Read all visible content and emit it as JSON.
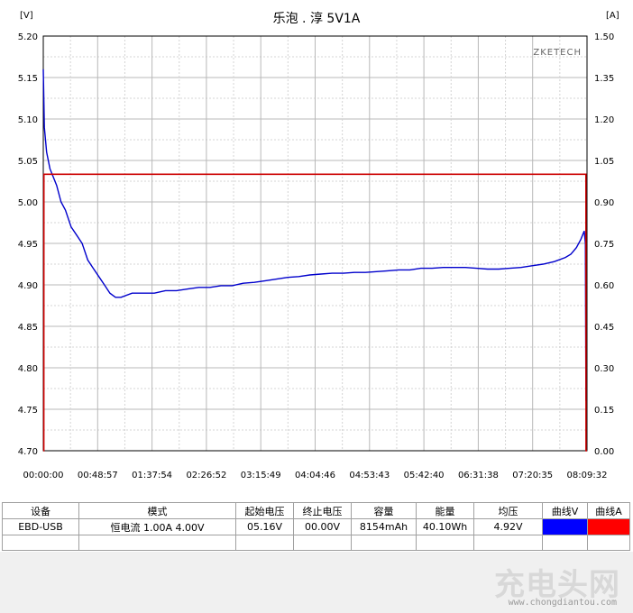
{
  "chart_data": {
    "type": "line",
    "title": "乐泡 . 淳 5V1A",
    "watermark": "ZKETECH",
    "y_left_unit": "[V]",
    "y_right_unit": "[A]",
    "y_left_ticks": [
      "5.20",
      "5.15",
      "5.10",
      "5.05",
      "5.00",
      "4.95",
      "4.90",
      "4.85",
      "4.80",
      "4.75",
      "4.70"
    ],
    "y_right_ticks": [
      "1.50",
      "1.35",
      "1.20",
      "1.05",
      "0.90",
      "0.75",
      "0.60",
      "0.45",
      "0.30",
      "0.15",
      "0.00"
    ],
    "x_ticks": [
      "00:00:00",
      "00:48:57",
      "01:37:54",
      "02:26:52",
      "03:15:49",
      "04:04:46",
      "04:53:43",
      "05:42:40",
      "06:31:38",
      "07:20:35",
      "08:09:32"
    ],
    "y_left_range": [
      4.7,
      5.2
    ],
    "y_right_range": [
      0.0,
      1.5
    ],
    "x_range_minutes": [
      0,
      489.5
    ],
    "grid": true,
    "series": [
      {
        "axis": "left",
        "color": "#0000cc",
        "points": [
          [
            0,
            5.16
          ],
          [
            1,
            5.09
          ],
          [
            3,
            5.06
          ],
          [
            6,
            5.04
          ],
          [
            9,
            5.03
          ],
          [
            12,
            5.02
          ],
          [
            16,
            5.0
          ],
          [
            20,
            4.99
          ],
          [
            25,
            4.97
          ],
          [
            30,
            4.96
          ],
          [
            35,
            4.95
          ],
          [
            40,
            4.93
          ],
          [
            45,
            4.92
          ],
          [
            50,
            4.91
          ],
          [
            55,
            4.9
          ],
          [
            60,
            4.89
          ],
          [
            65,
            4.885
          ],
          [
            70,
            4.885
          ],
          [
            80,
            4.89
          ],
          [
            90,
            4.89
          ],
          [
            100,
            4.89
          ],
          [
            110,
            4.893
          ],
          [
            120,
            4.893
          ],
          [
            130,
            4.895
          ],
          [
            140,
            4.897
          ],
          [
            150,
            4.897
          ],
          [
            160,
            4.899
          ],
          [
            170,
            4.899
          ],
          [
            180,
            4.902
          ],
          [
            190,
            4.903
          ],
          [
            200,
            4.905
          ],
          [
            210,
            4.907
          ],
          [
            220,
            4.909
          ],
          [
            230,
            4.91
          ],
          [
            240,
            4.912
          ],
          [
            250,
            4.913
          ],
          [
            260,
            4.914
          ],
          [
            270,
            4.914
          ],
          [
            280,
            4.915
          ],
          [
            290,
            4.915
          ],
          [
            300,
            4.916
          ],
          [
            310,
            4.917
          ],
          [
            320,
            4.918
          ],
          [
            330,
            4.918
          ],
          [
            340,
            4.92
          ],
          [
            350,
            4.92
          ],
          [
            360,
            4.921
          ],
          [
            370,
            4.921
          ],
          [
            380,
            4.921
          ],
          [
            390,
            4.92
          ],
          [
            400,
            4.919
          ],
          [
            410,
            4.919
          ],
          [
            420,
            4.92
          ],
          [
            430,
            4.921
          ],
          [
            440,
            4.923
          ],
          [
            450,
            4.925
          ],
          [
            460,
            4.928
          ],
          [
            470,
            4.933
          ],
          [
            475,
            4.937
          ],
          [
            480,
            4.945
          ],
          [
            484,
            4.955
          ],
          [
            487,
            4.965
          ],
          [
            488,
            4.95
          ],
          [
            488.5,
            4.76
          ]
        ]
      },
      {
        "axis": "right",
        "color": "#cc0000",
        "points": [
          [
            0,
            0.0
          ],
          [
            0.5,
            0.0
          ],
          [
            0.6,
            1.0
          ],
          [
            488.5,
            1.0
          ],
          [
            488.6,
            0.0
          ],
          [
            489.5,
            0.0
          ]
        ]
      }
    ]
  },
  "table": {
    "headers": [
      "设备",
      "模式",
      "起始电压",
      "终止电压",
      "容量",
      "能量",
      "均压",
      "曲线V",
      "曲线A"
    ],
    "row": [
      "EBD-USB",
      "恒电流  1.00A  4.00V",
      "05.16V",
      "00.00V",
      "8154mAh",
      "40.10Wh",
      "4.92V"
    ],
    "curve_v_color": "#0000ff",
    "curve_a_color": "#ff0000"
  },
  "brand_watermark": "充电头网",
  "brand_url": "www.chongdiantou.com"
}
